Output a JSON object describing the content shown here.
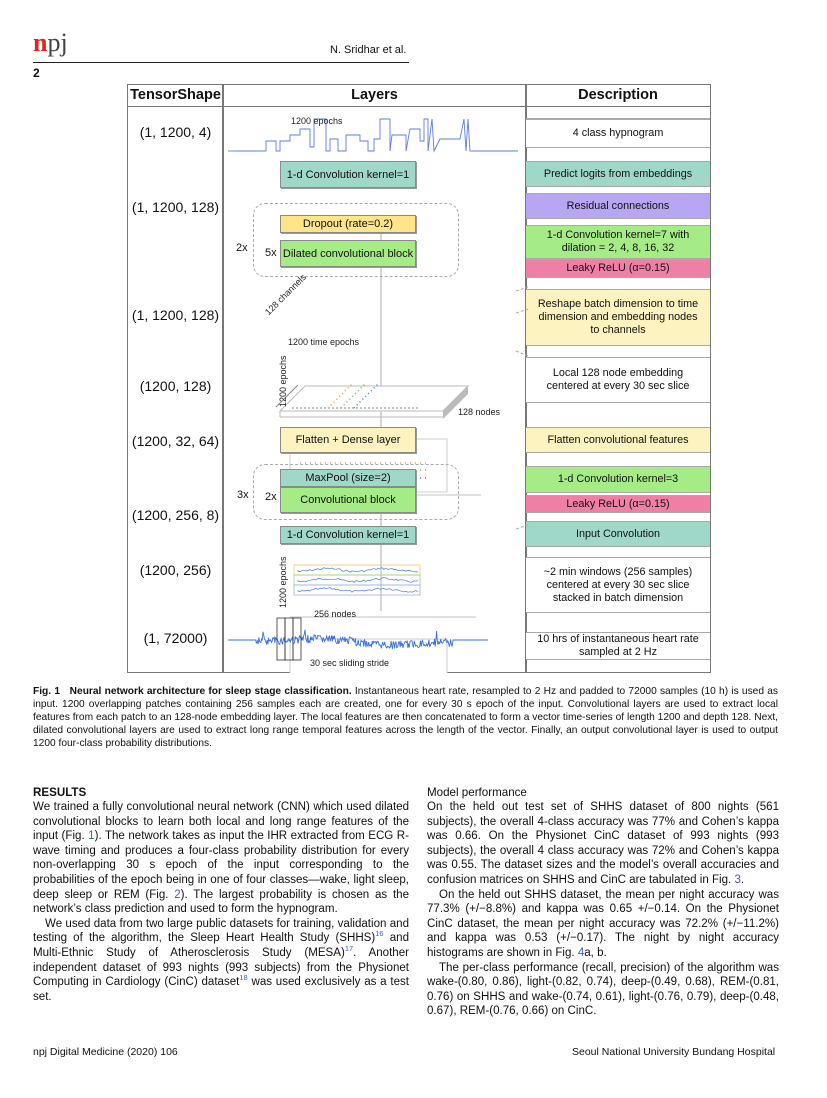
{
  "header": {
    "logo": "npj",
    "authors": "N. Sridhar et al.",
    "page_number": "2"
  },
  "figure": {
    "headers": [
      "TensorShape",
      "Layers",
      "Description"
    ],
    "shapes": [
      "(1, 1200, 4)",
      "(1, 1200, 128)",
      "(1, 1200, 128)",
      "(1200, 128)",
      "(1200, 32, 64)",
      "(1200, 256, 8)",
      "(1200, 256)",
      "(1, 72000)"
    ],
    "layers": {
      "conv_out": "1-d Convolution kernel=1",
      "dropout": "Dropout (rate=0.2)",
      "dilated": "Dilated convolutional block",
      "flatten": "Flatten + Dense layer",
      "maxpool": "MaxPool (size=2)",
      "conv_block": "Convolutional block",
      "conv_in": "1-d Convolution kernel=1",
      "repeat_outer_1": "2x",
      "repeat_inner_1": "5x",
      "repeat_outer_2": "3x",
      "repeat_inner_2": "2x"
    },
    "labels": {
      "epochs_1200": "1200 epochs",
      "channels_128": "128 channels",
      "time_epochs": "1200 time epochs",
      "epochs_vertical": "1200 epochs",
      "nodes_128": "128 nodes",
      "epochs_vertical_2": "1200 epochs",
      "nodes_256": "256 nodes",
      "stride": "30 sec sliding stride"
    },
    "descriptions": {
      "hypnogram": "4 class hypnogram",
      "logits": "Predict logits from embeddings",
      "residual": "Residual connections",
      "dilated_conv": "1-d Convolution kernel=7 with dilation = 2, 4, 8, 16, 32",
      "leaky1": "Leaky ReLU (α=0.15)",
      "reshape": "Reshape batch dimension to time dimension and embedding nodes to channels",
      "embedding": "Local 128 node embedding centered at every 30 sec slice",
      "flatten": "Flatten convolutional features",
      "conv3": "1-d Convolution kernel=3",
      "leaky2": "Leaky ReLU (α=0.15)",
      "input_conv": "Input Convolution",
      "windows": "~2 min windows (256 samples) centered at every 30 sec slice stacked in batch dimension",
      "ihr": "10 hrs of instantaneous heart rate sampled at 2 Hz"
    },
    "colors": {
      "teal": "#9fd8c8",
      "yellow": "#fde58a",
      "light_yellow": "#fdf3c0",
      "green": "#a6ec86",
      "purple": "#b9a6f3",
      "pink": "#f07fa6",
      "signal": "#3a6fe0"
    }
  },
  "caption": {
    "label": "Fig. 1",
    "title": "Neural network architecture for sleep stage classification.",
    "text": " Instantaneous heart rate, resampled to 2 Hz and padded to 72000 samples (10 h) is used as input. 1200 overlapping patches containing 256 samples each are created, one for every 30 s epoch of the input. Convolutional layers are used to extract local features from each patch to an 128-node embedding layer. The local features are then concatenated to form a vector time-series of length 1200 and depth 128. Next, dilated convolutional layers are used to extract long range temporal features across the length of the vector. Finally, an output convolutional layer is used to output 1200 four-class probability distributions."
  },
  "left": {
    "heading": "RESULTS",
    "p1a": "We trained a fully convolutional neural network (CNN) which used dilated convolutional blocks to learn both local and long range features of the input (Fig. ",
    "p1ref": "1",
    "p1b": "). The network takes as input the IHR extracted from ECG R-wave timing and produces a four-class probability distribution for every non-overlapping 30 s epoch of the input corresponding to the probabilities of the epoch being in one of four classes—wake, light sleep, deep sleep or REM (Fig. ",
    "p1ref2": "2",
    "p1c": "). The largest probability is chosen as the network’s class prediction and used to form the hypnogram.",
    "p2a": "We used data from two large public datasets for training, validation and testing of the algorithm, the Sleep Heart Health Study (SHHS)",
    "p2ref1": "16",
    "p2b": " and Multi-Ethnic Study of Atherosclerosis Study (MESA)",
    "p2ref2": "17",
    "p2c": ". Another independent dataset of 993 nights (993 subjects) from the Physionet Computing in Cardiology (CinC) dataset",
    "p2ref3": "18",
    "p2d": " was used exclusively as a test set."
  },
  "right": {
    "heading": "Model performance",
    "p1a": "On the held out test set of SHHS dataset of 800 nights (561 subjects), the overall 4-class accuracy was 77% and Cohen’s kappa was 0.66. On the Physionet CinC dataset of 993 nights (993 subjects), the overall 4 class accuracy was 72% and Cohen’s kappa was 0.55. The dataset sizes and the model’s overall accuracies and confusion matrices on SHHS and CinC are tabulated in Fig. ",
    "p1ref": "3",
    "p1b": ".",
    "p2a": "On the held out SHHS dataset, the mean per night accuracy was 77.3% (+/−8.8%) and kappa was 0.65 +/−0.14. On the Physionet CinC dataset, the mean per night accuracy was 72.2% (+/−11.2%) and kappa was 0.53 (+/−0.17). The night by night accuracy histograms are shown in Fig. ",
    "p2ref": "4",
    "p2b": "a, b.",
    "p3": "The per-class performance (recall, precision) of the algorithm was wake-(0.80, 0.86), light-(0.82, 0.74), deep-(0.49, 0.68), REM-(0.81, 0.76) on SHHS and wake-(0.74, 0.61), light-(0.76, 0.79), deep-(0.48, 0.67), REM-(0.76, 0.66) on CinC."
  },
  "footer": {
    "left": "npj Digital Medicine (2020) 106",
    "right": "Seoul National University Bundang Hospital"
  }
}
